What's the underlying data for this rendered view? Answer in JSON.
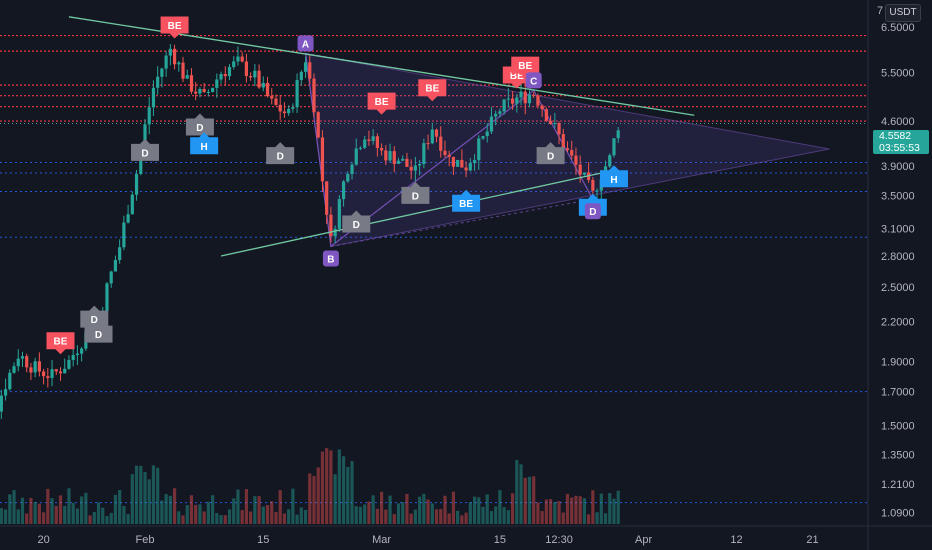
{
  "header": {
    "currency": "USDT",
    "corner_tick": "7"
  },
  "current": {
    "price": "4.5582",
    "countdown": "03:55:53",
    "price_value": 4.5582
  },
  "colors": {
    "background": "#131722",
    "up": "#26a69a",
    "down": "#ef5350",
    "resistance": "#f23645",
    "support_dotted": "#2962ff",
    "trendline": "#71c9a1",
    "pattern_fill": "#5b4a9e",
    "be_down": "#f7525f",
    "be_up": "#2196f3",
    "d_marker": "#787b86",
    "abc_marker": "#7e57c2"
  },
  "chart_data": {
    "type": "candlestick",
    "scale": "log",
    "ylim": [
      1.0,
      7.2
    ],
    "y_ticks": [
      "6.5000",
      "5.5000",
      "4.6000",
      "3.9000",
      "3.5000",
      "3.1000",
      "2.8000",
      "2.5000",
      "2.2000",
      "1.9000",
      "1.7000",
      "1.5000",
      "1.3500",
      "1.2100",
      "1.0900"
    ],
    "y_tick_values": [
      6.5,
      5.5,
      4.6,
      3.9,
      3.5,
      3.1,
      2.8,
      2.5,
      2.2,
      1.9,
      1.7,
      1.5,
      1.35,
      1.21,
      1.09
    ],
    "x_ticks": [
      "20",
      "Feb",
      "15",
      "Mar",
      "15",
      "12:30",
      "Apr",
      "12",
      "21"
    ],
    "x_tick_days": [
      -11,
      1,
      15,
      29,
      43,
      50,
      60,
      71,
      80
    ],
    "resistance_levels": [
      6.3,
      5.95,
      5.25,
      5.05,
      4.85,
      4.6
    ],
    "support_levels": [
      3.95,
      3.8,
      3.55,
      3.0,
      1.7,
      1.13
    ],
    "trendlines": [
      {
        "from": [
          -8,
          6.75
        ],
        "to": [
          66,
          4.7
        ]
      },
      {
        "from": [
          10,
          2.8
        ],
        "to": [
          55,
          3.8
        ]
      }
    ],
    "pattern_points": [
      {
        "label": "A",
        "day": 20,
        "value": 5.9
      },
      {
        "label": "B",
        "day": 23,
        "value": 2.9
      },
      {
        "label": "C",
        "day": 47,
        "value": 5.15
      },
      {
        "label": "D",
        "day": 54,
        "value": 3.45
      }
    ],
    "pattern_apex": {
      "day": 82,
      "value": 4.15
    },
    "markers": [
      {
        "label": "BE",
        "kind": "be_down",
        "day": -9,
        "value": 2.05
      },
      {
        "label": "D",
        "kind": "d_marker",
        "day": -5,
        "value": 2.22
      },
      {
        "label": "D",
        "kind": "d_marker",
        "day": -4.5,
        "value": 2.1
      },
      {
        "label": "D",
        "kind": "d_marker",
        "day": 1,
        "value": 4.1
      },
      {
        "label": "BE",
        "kind": "be_down",
        "day": 4.5,
        "value": 6.55
      },
      {
        "label": "D",
        "kind": "d_marker",
        "day": 7.5,
        "value": 4.5
      },
      {
        "label": "H",
        "kind": "be_up",
        "day": 8,
        "value": 4.2
      },
      {
        "label": "D",
        "kind": "d_marker",
        "day": 17,
        "value": 4.05
      },
      {
        "label": "D",
        "kind": "d_marker",
        "day": 26,
        "value": 3.15
      },
      {
        "label": "BE",
        "kind": "be_down",
        "day": 29,
        "value": 4.95
      },
      {
        "label": "D",
        "kind": "d_marker",
        "day": 33,
        "value": 3.5
      },
      {
        "label": "BE",
        "kind": "be_down",
        "day": 35,
        "value": 5.2
      },
      {
        "label": "BE",
        "kind": "be_up",
        "day": 39,
        "value": 3.4
      },
      {
        "label": "BE",
        "kind": "be_down",
        "day": 45,
        "value": 5.45
      },
      {
        "label": "BE",
        "kind": "be_down",
        "day": 46,
        "value": 5.65
      },
      {
        "label": "D",
        "kind": "d_marker",
        "day": 49,
        "value": 4.05
      },
      {
        "label": "BE",
        "kind": "be_up",
        "day": 54,
        "value": 3.35
      },
      {
        "label": "H",
        "kind": "be_up",
        "day": 56.5,
        "value": 3.72
      }
    ]
  }
}
